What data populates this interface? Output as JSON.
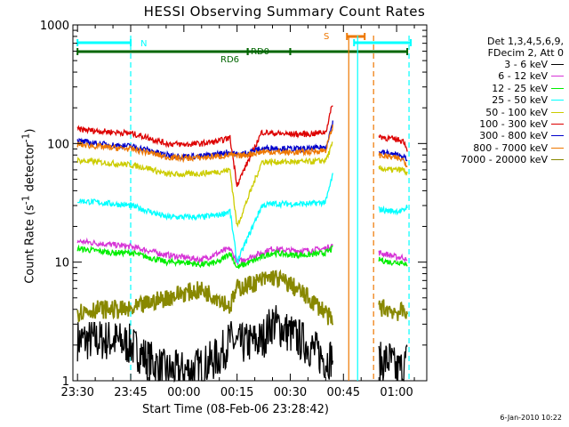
{
  "title": "HESSI Observing Summary Count Rates",
  "xlabel": "Start Time (08-Feb-06 23:28:42)",
  "ylabel_html": "Count Rate (s<sup>-1</sup> detector<sup>-1</sup>)",
  "timestamp": "6-Jan-2010 10:22",
  "legend": {
    "header": [
      "Det 1,3,4,5,6,9,",
      "FDecim 2, Att 0"
    ],
    "entries": [
      {
        "label": "3 - 6 keV",
        "color": "#000000"
      },
      {
        "label": "6 - 12 keV",
        "color": "#d633d6"
      },
      {
        "label": "12 - 25 keV",
        "color": "#00ee00"
      },
      {
        "label": "25 - 50 keV",
        "color": "#00ffff"
      },
      {
        "label": "50 - 100 keV",
        "color": "#cccc00"
      },
      {
        "label": "100 - 300 keV",
        "color": "#dd0000"
      },
      {
        "label": "300 - 800 keV",
        "color": "#0000cc"
      },
      {
        "label": "800 - 7000 keV",
        "color": "#ee7700"
      },
      {
        "label": "7000 - 20000 keV",
        "color": "#888800"
      }
    ]
  },
  "flag_labels": {
    "N": "N",
    "S": "S",
    "RD0": "RD0",
    "RD6": "RD6"
  },
  "chart_data": {
    "type": "line",
    "title": "HESSI Observing Summary Count Rates",
    "xlabel": "Start Time (08-Feb-06 23:28:42)",
    "ylabel": "Count Rate (s-1 detector-1)",
    "yscale": "log",
    "ylim": [
      1,
      1000
    ],
    "xlim": [
      "23:30",
      "01:05"
    ],
    "x_ticks": [
      "23:30",
      "23:45",
      "00:00",
      "00:15",
      "00:30",
      "00:45",
      "01:00"
    ],
    "x_tick_minutes": [
      0,
      15,
      30,
      45,
      60,
      75,
      90
    ],
    "y_ticks": [
      1,
      10,
      100,
      1000
    ],
    "y_tick_labels": [
      "1",
      "10",
      "100",
      "1000"
    ],
    "x_data_minutes": [
      0,
      5,
      10,
      15,
      20,
      25,
      30,
      35,
      40,
      43,
      45,
      52,
      55,
      60,
      65,
      70,
      72,
      75,
      85,
      88,
      90,
      92,
      93
    ],
    "series": [
      {
        "name": "3 - 6 keV",
        "color": "#000000",
        "values": [
          2.2,
          2.2,
          2.2,
          2.0,
          1.5,
          1.2,
          1.2,
          1.3,
          1.6,
          2.2,
          2.0,
          2.2,
          3.1,
          2.5,
          2.0,
          1.5,
          1.6,
          null,
          1.4,
          1.5,
          1.2,
          1.3,
          1.5
        ]
      },
      {
        "name": "6 - 12 keV",
        "color": "#d633d6",
        "values": [
          15,
          14.5,
          14,
          13.5,
          12.5,
          11.5,
          11,
          10.5,
          12,
          13,
          10,
          12,
          13,
          12.5,
          12.5,
          13,
          14,
          null,
          12,
          11.5,
          11,
          11,
          10
        ]
      },
      {
        "name": "12 - 25 keV",
        "color": "#00ee00",
        "values": [
          13,
          12.5,
          12,
          12,
          11,
          10,
          10,
          9.5,
          10,
          12,
          9,
          11,
          12,
          11.5,
          11.5,
          12,
          13,
          null,
          10.5,
          10,
          10,
          10,
          9
        ]
      },
      {
        "name": "25 - 50 keV",
        "color": "#00ffff",
        "values": [
          33,
          32,
          31,
          30,
          27,
          24,
          24,
          24,
          25,
          27,
          10,
          30,
          31,
          31,
          31,
          32,
          55,
          null,
          28,
          27,
          27,
          27,
          30
        ]
      },
      {
        "name": "50 - 100 keV",
        "color": "#cccc00",
        "values": [
          72,
          70,
          68,
          66,
          62,
          55,
          55,
          56,
          58,
          60,
          20,
          70,
          70,
          70,
          70,
          72,
          100,
          null,
          62,
          60,
          60,
          60,
          55
        ]
      },
      {
        "name": "100 - 300 keV",
        "color": "#dd0000",
        "values": [
          132,
          128,
          125,
          122,
          112,
          100,
          98,
          100,
          105,
          112,
          45,
          125,
          122,
          120,
          120,
          125,
          220,
          null,
          115,
          110,
          108,
          105,
          90
        ]
      },
      {
        "name": "300 - 800 keV",
        "color": "#0000cc",
        "values": [
          105,
          100,
          97,
          95,
          88,
          80,
          78,
          78,
          82,
          85,
          80,
          90,
          92,
          90,
          90,
          93,
          150,
          null,
          85,
          82,
          80,
          78,
          70
        ]
      },
      {
        "name": "800 - 7000 keV",
        "color": "#ee7700",
        "values": [
          98,
          95,
          92,
          90,
          84,
          77,
          75,
          76,
          78,
          80,
          78,
          85,
          85,
          84,
          85,
          88,
          140,
          null,
          80,
          77,
          75,
          73,
          65
        ]
      },
      {
        "name": "7000 - 20000 keV",
        "color": "#888800",
        "values": [
          3.8,
          4.0,
          4.0,
          3.9,
          4.5,
          5.0,
          5.5,
          5.8,
          5.0,
          4.2,
          6.0,
          7.0,
          7.5,
          6.5,
          5.0,
          3.8,
          3.0,
          null,
          4.2,
          4.0,
          3.8,
          3.8,
          4.0
        ]
      }
    ],
    "flags": [
      {
        "label": "N",
        "color": "#00ffff",
        "segments": [
          [
            "23:30",
            "23:45"
          ],
          [
            "00:48",
            "01:04"
          ]
        ]
      },
      {
        "label": "S",
        "color": "#ee7700",
        "segments": [
          [
            "00:46",
            "00:51"
          ]
        ]
      },
      {
        "label": "RD0",
        "color": "#006600",
        "segments": [
          [
            "23:30",
            "00:18"
          ],
          [
            "00:30",
            "01:03"
          ]
        ]
      },
      {
        "label": "RD6",
        "color": "#006600",
        "segments": [
          [
            "00:18",
            "00:30"
          ]
        ]
      }
    ],
    "vertical_markers": [
      {
        "minute": 15,
        "color": "#00ffff",
        "style": "dashed"
      },
      {
        "minute": 76.5,
        "color": "#ee7700",
        "style": "solid"
      },
      {
        "minute": 79,
        "color": "#00ffff",
        "style": "solid"
      },
      {
        "minute": 83.5,
        "color": "#ee7700",
        "style": "dashed"
      },
      {
        "minute": 93.5,
        "color": "#00ffff",
        "style": "dashed"
      }
    ],
    "legend_position": "top-right"
  }
}
